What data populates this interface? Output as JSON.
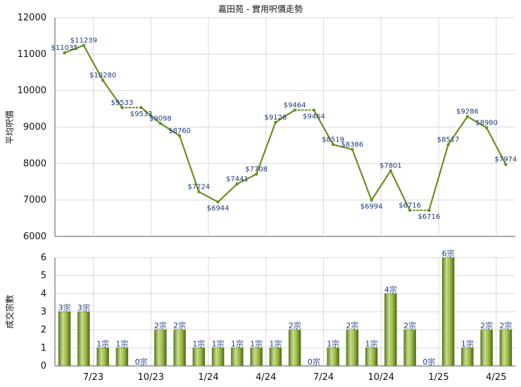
{
  "chart_data": [
    {
      "type": "line",
      "title": "嘉田苑 - 實用呎價走勢",
      "ylabel": "平均呎價",
      "ylim": [
        6000,
        12000
      ],
      "yticks": [
        "12000",
        "11000",
        "10000",
        "9000",
        "8000",
        "7000",
        "6000"
      ],
      "points": [
        {
          "label": "$11035",
          "value": 11035
        },
        {
          "label": "$11239",
          "value": 11239
        },
        {
          "label": "$10280",
          "value": 10280
        },
        {
          "label": "$9533",
          "value": 9533
        },
        {
          "label": "$9533",
          "value": 9533
        },
        {
          "label": "$9098",
          "value": 9098
        },
        {
          "label": "$8760",
          "value": 8760
        },
        {
          "label": "$7224",
          "value": 7224
        },
        {
          "label": "$6944",
          "value": 6944
        },
        {
          "label": "$7441",
          "value": 7441
        },
        {
          "label": "$7708",
          "value": 7708
        },
        {
          "label": "$9126",
          "value": 9126
        },
        {
          "label": "$9464",
          "value": 9464
        },
        {
          "label": "$9464",
          "value": 9464
        },
        {
          "label": "$8519",
          "value": 8519
        },
        {
          "label": "$8386",
          "value": 8386
        },
        {
          "label": "$6994",
          "value": 6994
        },
        {
          "label": "$7801",
          "value": 7801
        },
        {
          "label": "$6716",
          "value": 6716
        },
        {
          "label": "$6716",
          "value": 6716
        },
        {
          "label": "$8517",
          "value": 8517
        },
        {
          "label": "$9286",
          "value": 9286
        },
        {
          "label": "$8980",
          "value": 8980
        },
        {
          "label": "$7974",
          "value": 7974
        }
      ],
      "dotted_segments": [
        3,
        12,
        18
      ],
      "color": "#6b8e23",
      "grid": true
    },
    {
      "type": "bar",
      "ylabel": "成交宗數",
      "ylim": [
        0,
        6
      ],
      "yticks": [
        "6",
        "5",
        "4",
        "3",
        "2",
        "1",
        "0"
      ],
      "x_ticks": [
        {
          "label": "7/23",
          "after_index": 1
        },
        {
          "label": "10/23",
          "after_index": 4
        },
        {
          "label": "1/24",
          "after_index": 7
        },
        {
          "label": "4/24",
          "after_index": 10
        },
        {
          "label": "7/24",
          "after_index": 13
        },
        {
          "label": "10/24",
          "after_index": 16
        },
        {
          "label": "1/25",
          "after_index": 19
        },
        {
          "label": "4/25",
          "after_index": 22
        }
      ],
      "bars": [
        {
          "label": "3宗",
          "value": 3
        },
        {
          "label": "3宗",
          "value": 3
        },
        {
          "label": "1宗",
          "value": 1
        },
        {
          "label": "1宗",
          "value": 1
        },
        {
          "label": "0宗",
          "value": 0
        },
        {
          "label": "2宗",
          "value": 2
        },
        {
          "label": "2宗",
          "value": 2
        },
        {
          "label": "1宗",
          "value": 1
        },
        {
          "label": "1宗",
          "value": 1
        },
        {
          "label": "1宗",
          "value": 1
        },
        {
          "label": "1宗",
          "value": 1
        },
        {
          "label": "1宗",
          "value": 1
        },
        {
          "label": "2宗",
          "value": 2
        },
        {
          "label": "0宗",
          "value": 0
        },
        {
          "label": "1宗",
          "value": 1
        },
        {
          "label": "2宗",
          "value": 2
        },
        {
          "label": "1宗",
          "value": 1
        },
        {
          "label": "4宗",
          "value": 4
        },
        {
          "label": "2宗",
          "value": 2
        },
        {
          "label": "0宗",
          "value": 0
        },
        {
          "label": "6宗",
          "value": 6
        },
        {
          "label": "1宗",
          "value": 1
        },
        {
          "label": "2宗",
          "value": 2
        },
        {
          "label": "2宗",
          "value": 2
        }
      ],
      "color": "#7a9a2e",
      "grid": true
    }
  ]
}
